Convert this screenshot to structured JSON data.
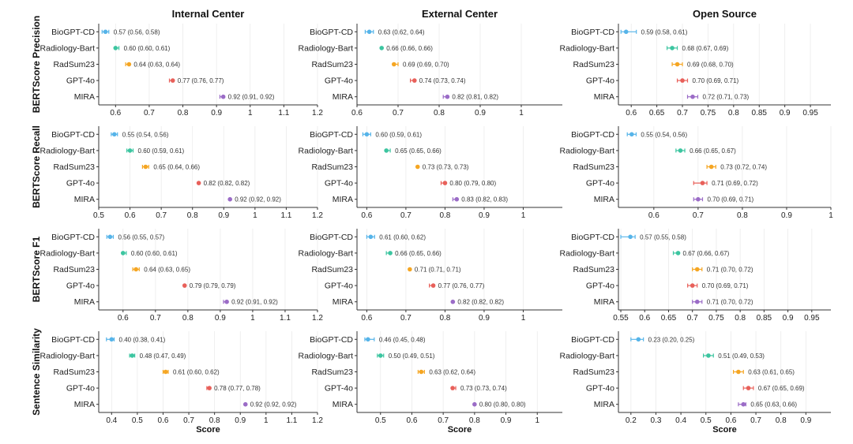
{
  "categories": [
    "BioGPT-CD",
    "Radiology-Bart",
    "RadSum23",
    "GPT-4o",
    "MIRA"
  ],
  "colors": [
    "#56B4E9",
    "#3CC5A0",
    "#F5A623",
    "#E8605A",
    "#9B6CC7"
  ],
  "columns": [
    "Internal Center",
    "External Center",
    "Open Source"
  ],
  "xlabel": "Score",
  "chart_data": [
    {
      "type": "scatter",
      "metric": "BERTScore Precision",
      "panels": [
        {
          "center": "Internal Center",
          "xlim": [
            0.55,
            1.2
          ],
          "ticks": [
            0.6,
            0.7,
            0.8,
            0.9,
            1.0,
            1.1,
            1.2
          ],
          "points": [
            {
              "model": "BioGPT-CD",
              "value": 0.57,
              "lo": 0.56,
              "hi": 0.58,
              "label": "0.57 (0.56, 0.58)"
            },
            {
              "model": "Radiology-Bart",
              "value": 0.6,
              "lo": 0.6,
              "hi": 0.61,
              "label": "0.60 (0.60, 0.61)"
            },
            {
              "model": "RadSum23",
              "value": 0.64,
              "lo": 0.63,
              "hi": 0.64,
              "label": "0.64 (0.63, 0.64)"
            },
            {
              "model": "GPT-4o",
              "value": 0.77,
              "lo": 0.76,
              "hi": 0.77,
              "label": "0.77 (0.76, 0.77)"
            },
            {
              "model": "MIRA",
              "value": 0.92,
              "lo": 0.91,
              "hi": 0.92,
              "label": "0.92 (0.91, 0.92)"
            }
          ]
        },
        {
          "center": "External Center",
          "xlim": [
            0.6,
            1.1
          ],
          "ticks": [
            0.6,
            0.7,
            0.8,
            0.9,
            1.0
          ],
          "points": [
            {
              "model": "BioGPT-CD",
              "value": 0.63,
              "lo": 0.62,
              "hi": 0.64,
              "label": "0.63 (0.62, 0.64)"
            },
            {
              "model": "Radiology-Bart",
              "value": 0.66,
              "lo": 0.66,
              "hi": 0.66,
              "label": "0.66 (0.66, 0.66)"
            },
            {
              "model": "RadSum23",
              "value": 0.69,
              "lo": 0.69,
              "hi": 0.7,
              "label": "0.69 (0.69, 0.70)"
            },
            {
              "model": "GPT-4o",
              "value": 0.74,
              "lo": 0.73,
              "hi": 0.74,
              "label": "0.74 (0.73, 0.74)"
            },
            {
              "model": "MIRA",
              "value": 0.82,
              "lo": 0.81,
              "hi": 0.82,
              "label": "0.82 (0.81, 0.82)"
            }
          ]
        },
        {
          "center": "Open Source",
          "xlim": [
            0.575,
            0.99
          ],
          "ticks": [
            0.6,
            0.65,
            0.7,
            0.75,
            0.8,
            0.85,
            0.9,
            0.95
          ],
          "points": [
            {
              "model": "BioGPT-CD",
              "value": 0.59,
              "lo": 0.58,
              "hi": 0.61,
              "label": "0.59 (0.58, 0.61)"
            },
            {
              "model": "Radiology-Bart",
              "value": 0.68,
              "lo": 0.67,
              "hi": 0.69,
              "label": "0.68 (0.67, 0.69)"
            },
            {
              "model": "RadSum23",
              "value": 0.69,
              "lo": 0.68,
              "hi": 0.7,
              "label": "0.69 (0.68, 0.70)"
            },
            {
              "model": "GPT-4o",
              "value": 0.7,
              "lo": 0.69,
              "hi": 0.71,
              "label": "0.70 (0.69, 0.71)"
            },
            {
              "model": "MIRA",
              "value": 0.72,
              "lo": 0.71,
              "hi": 0.73,
              "label": "0.72 (0.71, 0.73)"
            }
          ]
        }
      ]
    },
    {
      "type": "scatter",
      "metric": "BERTScore Recall",
      "panels": [
        {
          "center": "Internal Center",
          "xlim": [
            0.5,
            1.2
          ],
          "ticks": [
            0.5,
            0.6,
            0.7,
            0.8,
            0.9,
            1.0,
            1.1,
            1.2
          ],
          "points": [
            {
              "model": "BioGPT-CD",
              "value": 0.55,
              "lo": 0.54,
              "hi": 0.56,
              "label": "0.55 (0.54, 0.56)"
            },
            {
              "model": "Radiology-Bart",
              "value": 0.6,
              "lo": 0.59,
              "hi": 0.61,
              "label": "0.60 (0.59, 0.61)"
            },
            {
              "model": "RadSum23",
              "value": 0.65,
              "lo": 0.64,
              "hi": 0.66,
              "label": "0.65 (0.64, 0.66)"
            },
            {
              "model": "GPT-4o",
              "value": 0.82,
              "lo": 0.82,
              "hi": 0.82,
              "label": "0.82 (0.82, 0.82)"
            },
            {
              "model": "MIRA",
              "value": 0.92,
              "lo": 0.92,
              "hi": 0.92,
              "label": "0.92 (0.92, 0.92)"
            }
          ]
        },
        {
          "center": "External Center",
          "xlim": [
            0.575,
            1.1
          ],
          "ticks": [
            0.6,
            0.7,
            0.8,
            0.9,
            1.0
          ],
          "points": [
            {
              "model": "BioGPT-CD",
              "value": 0.6,
              "lo": 0.59,
              "hi": 0.61,
              "label": "0.60 (0.59, 0.61)"
            },
            {
              "model": "Radiology-Bart",
              "value": 0.65,
              "lo": 0.65,
              "hi": 0.66,
              "label": "0.65 (0.65, 0.66)"
            },
            {
              "model": "RadSum23",
              "value": 0.73,
              "lo": 0.73,
              "hi": 0.73,
              "label": "0.73 (0.73, 0.73)"
            },
            {
              "model": "GPT-4o",
              "value": 0.8,
              "lo": 0.79,
              "hi": 0.8,
              "label": "0.80 (0.79, 0.80)"
            },
            {
              "model": "MIRA",
              "value": 0.83,
              "lo": 0.82,
              "hi": 0.83,
              "label": "0.83 (0.82, 0.83)"
            }
          ]
        },
        {
          "center": "Open Source",
          "xlim": [
            0.52,
            1.0
          ],
          "ticks": [
            0.6,
            0.7,
            0.8,
            0.9,
            1.0
          ],
          "points": [
            {
              "model": "BioGPT-CD",
              "value": 0.55,
              "lo": 0.54,
              "hi": 0.56,
              "label": "0.55 (0.54, 0.56)"
            },
            {
              "model": "Radiology-Bart",
              "value": 0.66,
              "lo": 0.65,
              "hi": 0.67,
              "label": "0.66 (0.65, 0.67)"
            },
            {
              "model": "RadSum23",
              "value": 0.73,
              "lo": 0.72,
              "hi": 0.74,
              "label": "0.73 (0.72, 0.74)"
            },
            {
              "model": "GPT-4o",
              "value": 0.71,
              "lo": 0.69,
              "hi": 0.72,
              "label": "0.71 (0.69, 0.72)"
            },
            {
              "model": "MIRA",
              "value": 0.7,
              "lo": 0.69,
              "hi": 0.71,
              "label": "0.70 (0.69, 0.71)"
            }
          ]
        }
      ]
    },
    {
      "type": "scatter",
      "metric": "BERTScore F1",
      "panels": [
        {
          "center": "Internal Center",
          "xlim": [
            0.525,
            1.2
          ],
          "ticks": [
            0.6,
            0.7,
            0.8,
            0.9,
            1.0,
            1.1,
            1.2
          ],
          "points": [
            {
              "model": "BioGPT-CD",
              "value": 0.56,
              "lo": 0.55,
              "hi": 0.57,
              "label": "0.56 (0.55, 0.57)"
            },
            {
              "model": "Radiology-Bart",
              "value": 0.6,
              "lo": 0.6,
              "hi": 0.61,
              "label": "0.60 (0.60, 0.61)"
            },
            {
              "model": "RadSum23",
              "value": 0.64,
              "lo": 0.63,
              "hi": 0.65,
              "label": "0.64 (0.63, 0.65)"
            },
            {
              "model": "GPT-4o",
              "value": 0.79,
              "lo": 0.79,
              "hi": 0.79,
              "label": "0.79 (0.79, 0.79)"
            },
            {
              "model": "MIRA",
              "value": 0.92,
              "lo": 0.91,
              "hi": 0.92,
              "label": "0.92 (0.91, 0.92)"
            }
          ]
        },
        {
          "center": "External Center",
          "xlim": [
            0.575,
            1.1
          ],
          "ticks": [
            0.6,
            0.7,
            0.8,
            0.9,
            1.0
          ],
          "points": [
            {
              "model": "BioGPT-CD",
              "value": 0.61,
              "lo": 0.6,
              "hi": 0.62,
              "label": "0.61 (0.60, 0.62)"
            },
            {
              "model": "Radiology-Bart",
              "value": 0.66,
              "lo": 0.65,
              "hi": 0.66,
              "label": "0.66 (0.65, 0.66)"
            },
            {
              "model": "RadSum23",
              "value": 0.71,
              "lo": 0.71,
              "hi": 0.71,
              "label": "0.71 (0.71, 0.71)"
            },
            {
              "model": "GPT-4o",
              "value": 0.77,
              "lo": 0.76,
              "hi": 0.77,
              "label": "0.77 (0.76, 0.77)"
            },
            {
              "model": "MIRA",
              "value": 0.82,
              "lo": 0.82,
              "hi": 0.82,
              "label": "0.82 (0.82, 0.82)"
            }
          ]
        },
        {
          "center": "Open Source",
          "xlim": [
            0.545,
            0.99
          ],
          "ticks": [
            0.55,
            0.6,
            0.65,
            0.7,
            0.75,
            0.8,
            0.85,
            0.9,
            0.95
          ],
          "points": [
            {
              "model": "BioGPT-CD",
              "value": 0.57,
              "lo": 0.55,
              "hi": 0.58,
              "label": "0.57 (0.55, 0.58)"
            },
            {
              "model": "Radiology-Bart",
              "value": 0.67,
              "lo": 0.66,
              "hi": 0.67,
              "label": "0.67 (0.66, 0.67)"
            },
            {
              "model": "RadSum23",
              "value": 0.71,
              "lo": 0.7,
              "hi": 0.72,
              "label": "0.71 (0.70, 0.72)"
            },
            {
              "model": "GPT-4o",
              "value": 0.7,
              "lo": 0.69,
              "hi": 0.71,
              "label": "0.70 (0.69, 0.71)"
            },
            {
              "model": "MIRA",
              "value": 0.71,
              "lo": 0.7,
              "hi": 0.72,
              "label": "0.71 (0.70, 0.72)"
            }
          ]
        }
      ]
    },
    {
      "type": "scatter",
      "metric": "Sentence Similarity",
      "panels": [
        {
          "center": "Internal Center",
          "xlim": [
            0.35,
            1.2
          ],
          "ticks": [
            0.4,
            0.5,
            0.6,
            0.7,
            0.8,
            0.9,
            1.0,
            1.1,
            1.2
          ],
          "points": [
            {
              "model": "BioGPT-CD",
              "value": 0.4,
              "lo": 0.38,
              "hi": 0.41,
              "label": "0.40 (0.38, 0.41)"
            },
            {
              "model": "Radiology-Bart",
              "value": 0.48,
              "lo": 0.47,
              "hi": 0.49,
              "label": "0.48 (0.47, 0.49)"
            },
            {
              "model": "RadSum23",
              "value": 0.61,
              "lo": 0.6,
              "hi": 0.62,
              "label": "0.61 (0.60, 0.62)"
            },
            {
              "model": "GPT-4o",
              "value": 0.78,
              "lo": 0.77,
              "hi": 0.78,
              "label": "0.78 (0.77, 0.78)"
            },
            {
              "model": "MIRA",
              "value": 0.92,
              "lo": 0.92,
              "hi": 0.92,
              "label": "0.92 (0.92, 0.92)"
            }
          ]
        },
        {
          "center": "External Center",
          "xlim": [
            0.425,
            1.08
          ],
          "ticks": [
            0.5,
            0.6,
            0.7,
            0.8,
            0.9,
            1.0
          ],
          "points": [
            {
              "model": "BioGPT-CD",
              "value": 0.46,
              "lo": 0.45,
              "hi": 0.48,
              "label": "0.46 (0.45, 0.48)"
            },
            {
              "model": "Radiology-Bart",
              "value": 0.5,
              "lo": 0.49,
              "hi": 0.51,
              "label": "0.50 (0.49, 0.51)"
            },
            {
              "model": "RadSum23",
              "value": 0.63,
              "lo": 0.62,
              "hi": 0.64,
              "label": "0.63 (0.62, 0.64)"
            },
            {
              "model": "GPT-4o",
              "value": 0.73,
              "lo": 0.73,
              "hi": 0.74,
              "label": "0.73 (0.73, 0.74)"
            },
            {
              "model": "MIRA",
              "value": 0.8,
              "lo": 0.8,
              "hi": 0.8,
              "label": "0.80 (0.80, 0.80)"
            }
          ]
        },
        {
          "center": "Open Source",
          "xlim": [
            0.15,
            1.0
          ],
          "ticks": [
            0.2,
            0.3,
            0.4,
            0.5,
            0.6,
            0.7,
            0.8,
            0.9
          ],
          "points": [
            {
              "model": "BioGPT-CD",
              "value": 0.23,
              "lo": 0.2,
              "hi": 0.25,
              "label": "0.23 (0.20, 0.25)"
            },
            {
              "model": "Radiology-Bart",
              "value": 0.51,
              "lo": 0.49,
              "hi": 0.53,
              "label": "0.51 (0.49, 0.53)"
            },
            {
              "model": "RadSum23",
              "value": 0.63,
              "lo": 0.61,
              "hi": 0.65,
              "label": "0.63 (0.61, 0.65)"
            },
            {
              "model": "GPT-4o",
              "value": 0.67,
              "lo": 0.65,
              "hi": 0.69,
              "label": "0.67 (0.65, 0.69)"
            },
            {
              "model": "MIRA",
              "value": 0.65,
              "lo": 0.63,
              "hi": 0.66,
              "label": "0.65 (0.63, 0.66)"
            }
          ]
        }
      ]
    }
  ]
}
